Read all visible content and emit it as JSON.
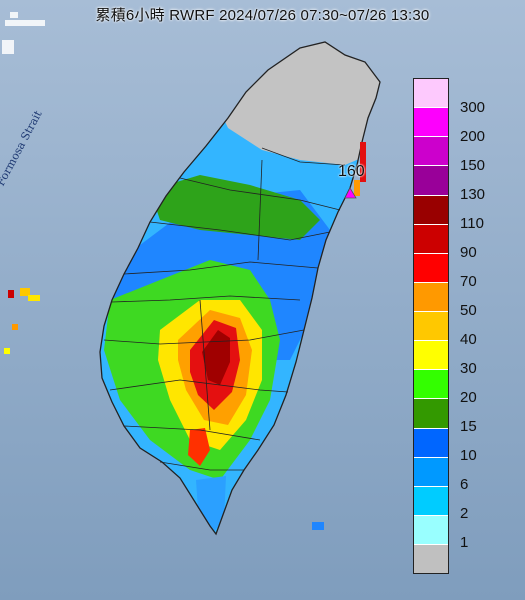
{
  "title": "累積6小時 RWRF 2024/07/26 07:30~07/26 13:30",
  "strait_label": "Formosa Strait",
  "max_value_label": "160",
  "legend": {
    "labels": [
      "300",
      "200",
      "150",
      "130",
      "110",
      "90",
      "70",
      "50",
      "40",
      "30",
      "20",
      "15",
      "10",
      "6",
      "2",
      "1"
    ],
    "colors": [
      "#fdc9fd",
      "#fd00fd",
      "#cc00cc",
      "#990099",
      "#990000",
      "#cc0000",
      "#ff0000",
      "#ff9900",
      "#ffc800",
      "#ffff00",
      "#33ff00",
      "#339900",
      "#0066ff",
      "#0099ff",
      "#00ccff",
      "#99ffff",
      "#c0c0c0"
    ]
  }
}
